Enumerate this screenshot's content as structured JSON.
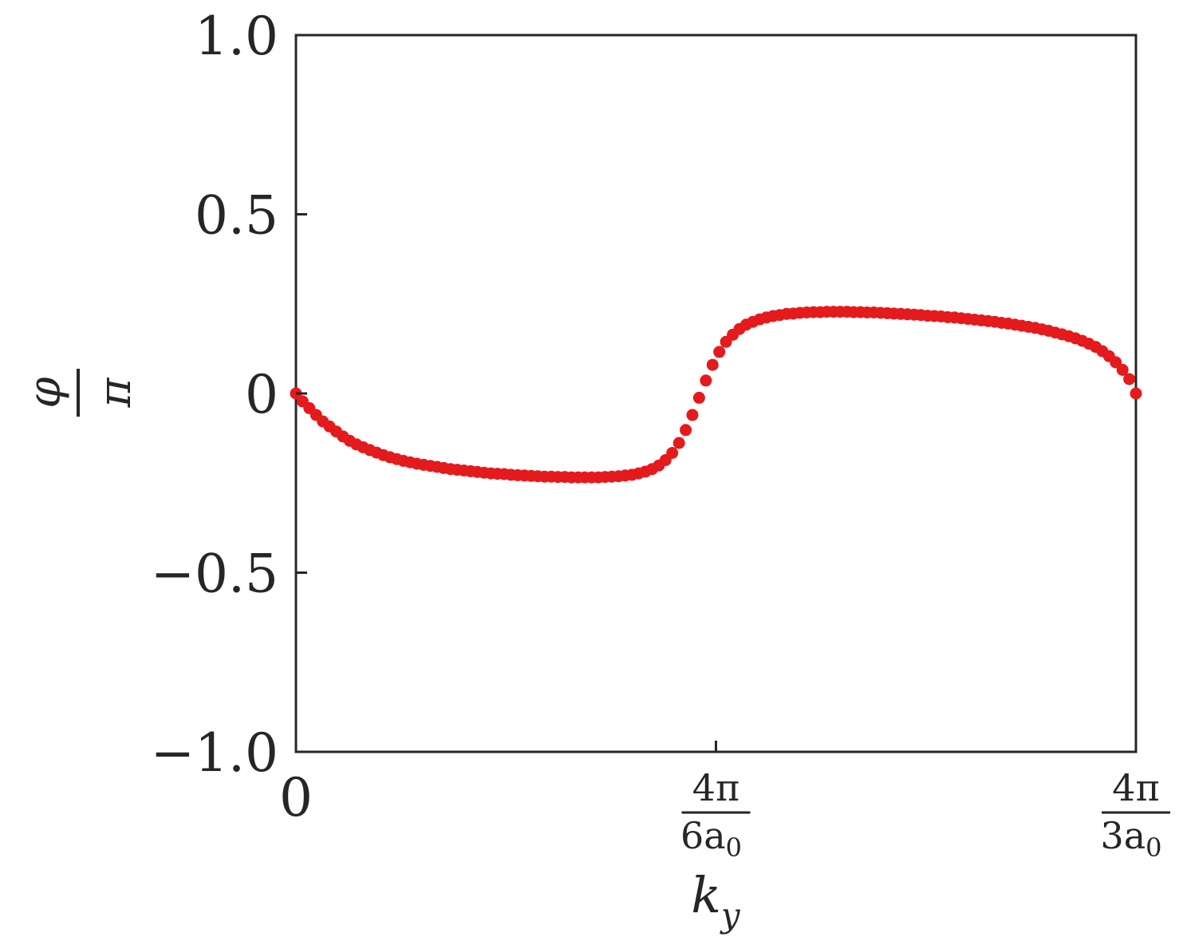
{
  "chart_data": {
    "type": "scatter",
    "title": "",
    "xlabel": "k_y",
    "ylabel": "φ/π",
    "ylabel_parts": {
      "numerator": "φ",
      "denominator": "π"
    },
    "xlim": [
      0,
      1
    ],
    "ylim": [
      -1.0,
      1.0
    ],
    "x_ticks": [
      {
        "value": 0,
        "label": "0"
      },
      {
        "value": 0.5,
        "label_num": "4π",
        "label_den_main": "6a",
        "label_den_sub": "0"
      },
      {
        "value": 1,
        "label_num": "4π",
        "label_den_main": "3a",
        "label_den_sub": "0"
      }
    ],
    "y_ticks": [
      {
        "value": 1.0,
        "label": "1.0"
      },
      {
        "value": 0.5,
        "label": "0.5"
      },
      {
        "value": 0,
        "label": "0"
      },
      {
        "value": -0.5,
        "label": "−0.5"
      },
      {
        "value": -1.0,
        "label": "−1.0"
      }
    ],
    "grid": false,
    "marker_color": "#e41a1c",
    "series": [
      {
        "points": [
          [
            0.0,
            0.0
          ],
          [
            0.008,
            -0.022
          ],
          [
            0.016,
            -0.041
          ],
          [
            0.024,
            -0.06
          ],
          [
            0.032,
            -0.078
          ],
          [
            0.04,
            -0.092
          ],
          [
            0.048,
            -0.106
          ],
          [
            0.056,
            -0.12
          ],
          [
            0.064,
            -0.132
          ],
          [
            0.072,
            -0.142
          ],
          [
            0.08,
            -0.15
          ],
          [
            0.088,
            -0.158
          ],
          [
            0.096,
            -0.165
          ],
          [
            0.104,
            -0.172
          ],
          [
            0.112,
            -0.178
          ],
          [
            0.12,
            -0.183
          ],
          [
            0.128,
            -0.188
          ],
          [
            0.136,
            -0.192
          ],
          [
            0.144,
            -0.196
          ],
          [
            0.152,
            -0.199
          ],
          [
            0.16,
            -0.202
          ],
          [
            0.168,
            -0.205
          ],
          [
            0.176,
            -0.208
          ],
          [
            0.184,
            -0.211
          ],
          [
            0.192,
            -0.213
          ],
          [
            0.2,
            -0.215
          ],
          [
            0.208,
            -0.217
          ],
          [
            0.216,
            -0.219
          ],
          [
            0.224,
            -0.221
          ],
          [
            0.232,
            -0.223
          ],
          [
            0.24,
            -0.224
          ],
          [
            0.248,
            -0.225
          ],
          [
            0.256,
            -0.227
          ],
          [
            0.264,
            -0.228
          ],
          [
            0.272,
            -0.229
          ],
          [
            0.28,
            -0.23
          ],
          [
            0.288,
            -0.231
          ],
          [
            0.296,
            -0.232
          ],
          [
            0.304,
            -0.232
          ],
          [
            0.312,
            -0.233
          ],
          [
            0.32,
            -0.233
          ],
          [
            0.328,
            -0.234
          ],
          [
            0.336,
            -0.234
          ],
          [
            0.344,
            -0.234
          ],
          [
            0.352,
            -0.234
          ],
          [
            0.36,
            -0.234
          ],
          [
            0.368,
            -0.233
          ],
          [
            0.376,
            -0.232
          ],
          [
            0.384,
            -0.231
          ],
          [
            0.392,
            -0.229
          ],
          [
            0.4,
            -0.227
          ],
          [
            0.408,
            -0.223
          ],
          [
            0.416,
            -0.218
          ],
          [
            0.424,
            -0.211
          ],
          [
            0.432,
            -0.201
          ],
          [
            0.44,
            -0.186
          ],
          [
            0.448,
            -0.166
          ],
          [
            0.456,
            -0.138
          ],
          [
            0.464,
            -0.102
          ],
          [
            0.472,
            -0.06
          ],
          [
            0.48,
            -0.012
          ],
          [
            0.488,
            0.036
          ],
          [
            0.496,
            0.08
          ],
          [
            0.504,
            0.116
          ],
          [
            0.512,
            0.144
          ],
          [
            0.52,
            0.164
          ],
          [
            0.528,
            0.18
          ],
          [
            0.536,
            0.192
          ],
          [
            0.544,
            0.2
          ],
          [
            0.552,
            0.207
          ],
          [
            0.56,
            0.212
          ],
          [
            0.568,
            0.216
          ],
          [
            0.576,
            0.219
          ],
          [
            0.584,
            0.222
          ],
          [
            0.592,
            0.223
          ],
          [
            0.6,
            0.225
          ],
          [
            0.608,
            0.226
          ],
          [
            0.616,
            0.227
          ],
          [
            0.624,
            0.227
          ],
          [
            0.632,
            0.228
          ],
          [
            0.64,
            0.228
          ],
          [
            0.648,
            0.228
          ],
          [
            0.656,
            0.228
          ],
          [
            0.664,
            0.227
          ],
          [
            0.672,
            0.227
          ],
          [
            0.68,
            0.226
          ],
          [
            0.688,
            0.226
          ],
          [
            0.696,
            0.225
          ],
          [
            0.704,
            0.224
          ],
          [
            0.712,
            0.223
          ],
          [
            0.72,
            0.222
          ],
          [
            0.728,
            0.221
          ],
          [
            0.736,
            0.22
          ],
          [
            0.744,
            0.219
          ],
          [
            0.752,
            0.217
          ],
          [
            0.76,
            0.216
          ],
          [
            0.768,
            0.215
          ],
          [
            0.776,
            0.213
          ],
          [
            0.784,
            0.212
          ],
          [
            0.792,
            0.21
          ],
          [
            0.8,
            0.208
          ],
          [
            0.808,
            0.206
          ],
          [
            0.816,
            0.204
          ],
          [
            0.824,
            0.202
          ],
          [
            0.832,
            0.2
          ],
          [
            0.84,
            0.197
          ],
          [
            0.848,
            0.195
          ],
          [
            0.856,
            0.192
          ],
          [
            0.864,
            0.189
          ],
          [
            0.872,
            0.186
          ],
          [
            0.88,
            0.183
          ],
          [
            0.888,
            0.179
          ],
          [
            0.896,
            0.175
          ],
          [
            0.904,
            0.17
          ],
          [
            0.912,
            0.165
          ],
          [
            0.92,
            0.16
          ],
          [
            0.928,
            0.154
          ],
          [
            0.936,
            0.147
          ],
          [
            0.944,
            0.139
          ],
          [
            0.952,
            0.13
          ],
          [
            0.96,
            0.118
          ],
          [
            0.968,
            0.104
          ],
          [
            0.976,
            0.087
          ],
          [
            0.984,
            0.066
          ],
          [
            0.992,
            0.04
          ],
          [
            1.0,
            0.0
          ]
        ]
      }
    ]
  }
}
